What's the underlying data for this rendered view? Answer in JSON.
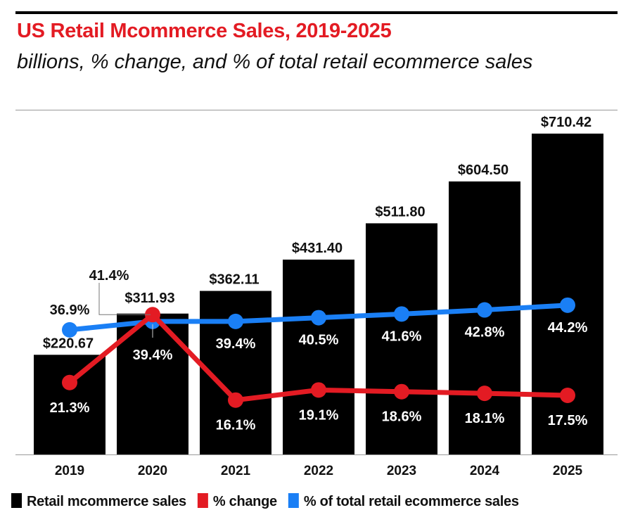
{
  "chart_data": {
    "type": "bar",
    "title": "US Retail Mcommerce Sales, 2019-2025",
    "subtitle": "billions, % change, and % of total retail ecommerce sales",
    "categories": [
      "2019",
      "2020",
      "2021",
      "2022",
      "2023",
      "2024",
      "2025"
    ],
    "series": [
      {
        "name": "Retail mcommerce sales",
        "type": "bar",
        "color": "#000000",
        "values": [
          220.67,
          311.93,
          362.11,
          431.4,
          511.8,
          604.5,
          710.42
        ],
        "labels": [
          "$220.67",
          "$311.93",
          "$362.11",
          "$431.40",
          "$511.80",
          "$604.50",
          "$710.42"
        ]
      },
      {
        "name": "% change",
        "type": "line",
        "color": "#e31b23",
        "values": [
          21.3,
          41.4,
          16.1,
          19.1,
          18.6,
          18.1,
          17.5
        ],
        "labels": [
          "21.3%",
          "41.4%",
          "16.1%",
          "19.1%",
          "18.6%",
          "18.1%",
          "17.5%"
        ]
      },
      {
        "name": "% of total retail ecommerce sales",
        "type": "line",
        "color": "#1a7ff5",
        "values": [
          36.9,
          39.4,
          39.4,
          40.5,
          41.6,
          42.8,
          44.2
        ],
        "labels": [
          "36.9%",
          "39.4%",
          "39.4%",
          "40.5%",
          "41.6%",
          "42.8%",
          "44.2%"
        ]
      }
    ],
    "legend": "bottom",
    "grid": false
  }
}
